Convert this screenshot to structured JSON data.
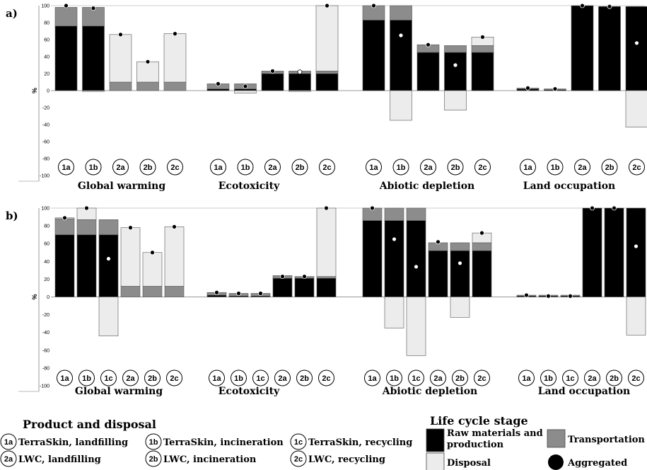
{
  "chart_data": [
    {
      "panel_label": "a)",
      "type": "bar",
      "stacked": true,
      "ylabel": "%",
      "ylim": [
        -100,
        100
      ],
      "yticks": [
        -100,
        -80,
        -60,
        -40,
        -20,
        0,
        20,
        40,
        60,
        80,
        100
      ],
      "groups": [
        {
          "name": "Global warming",
          "bars": [
            {
              "code": "1a",
              "raw": 76,
              "transport": 22,
              "disposal": 0,
              "aggregated": 100,
              "agg_style": "filled"
            },
            {
              "code": "1b",
              "raw": 76,
              "transport": 22,
              "disposal": -1,
              "aggregated": 97,
              "agg_style": "filled"
            },
            {
              "code": "2a",
              "raw": 0,
              "transport": 10,
              "disposal": 56,
              "aggregated": 66,
              "agg_style": "filled"
            },
            {
              "code": "2b",
              "raw": 0,
              "transport": 10,
              "disposal": 24,
              "aggregated": 34,
              "agg_style": "filled"
            },
            {
              "code": "2c",
              "raw": 0,
              "transport": 10,
              "disposal": 57,
              "aggregated": 67,
              "agg_style": "filled"
            }
          ]
        },
        {
          "name": "Ecotoxicity",
          "bars": [
            {
              "code": "1a",
              "raw": 2,
              "transport": 6,
              "disposal": 0,
              "aggregated": 8,
              "agg_style": "filled"
            },
            {
              "code": "1b",
              "raw": 2,
              "transport": 6,
              "disposal": -3,
              "aggregated": 5,
              "agg_style": "filled"
            },
            {
              "code": "2a",
              "raw": 20,
              "transport": 3,
              "disposal": 0,
              "aggregated": 23,
              "agg_style": "filled"
            },
            {
              "code": "2b",
              "raw": 20,
              "transport": 3,
              "disposal": -1,
              "aggregated": 22,
              "agg_style": "hollow"
            },
            {
              "code": "2c",
              "raw": 20,
              "transport": 3,
              "disposal": 77,
              "aggregated": 100,
              "agg_style": "filled"
            }
          ]
        },
        {
          "name": "Abiotic depletion",
          "bars": [
            {
              "code": "1a",
              "raw": 83,
              "transport": 17,
              "disposal": 0,
              "aggregated": 100,
              "agg_style": "filled"
            },
            {
              "code": "1b",
              "raw": 83,
              "transport": 17,
              "disposal": -35,
              "aggregated": 65,
              "agg_style": "hollow"
            },
            {
              "code": "2a",
              "raw": 45,
              "transport": 9,
              "disposal": 0,
              "aggregated": 54,
              "agg_style": "filled"
            },
            {
              "code": "2b",
              "raw": 45,
              "transport": 8,
              "disposal": -23,
              "aggregated": 30,
              "agg_style": "hollow"
            },
            {
              "code": "2c",
              "raw": 45,
              "transport": 8,
              "disposal": 10,
              "aggregated": 63,
              "agg_style": "filled"
            }
          ]
        },
        {
          "name": "Land occupation",
          "bars": [
            {
              "code": "1a",
              "raw": 2,
              "transport": 1,
              "disposal": 0,
              "aggregated": 3,
              "agg_style": "filled"
            },
            {
              "code": "1b",
              "raw": 1,
              "transport": 1,
              "disposal": 0,
              "aggregated": 2,
              "agg_style": "filled"
            },
            {
              "code": "2a",
              "raw": 100,
              "transport": 0,
              "disposal": 0,
              "aggregated": 100,
              "agg_style": "filled"
            },
            {
              "code": "2b",
              "raw": 99,
              "transport": 0,
              "disposal": 0,
              "aggregated": 99,
              "agg_style": "filled"
            },
            {
              "code": "2c",
              "raw": 99,
              "transport": 0,
              "disposal": -43,
              "aggregated": 56,
              "agg_style": "hollow"
            }
          ]
        }
      ]
    },
    {
      "panel_label": "b)",
      "type": "bar",
      "stacked": true,
      "ylabel": "%",
      "ylim": [
        -100,
        100
      ],
      "yticks": [
        -100,
        -80,
        -60,
        -40,
        -20,
        0,
        20,
        40,
        60,
        80,
        100
      ],
      "groups": [
        {
          "name": "Global warming",
          "bars": [
            {
              "code": "1a",
              "raw": 70,
              "transport": 18,
              "disposal": 1,
              "aggregated": 89,
              "agg_style": "filled"
            },
            {
              "code": "1b",
              "raw": 70,
              "transport": 17,
              "disposal": 13,
              "aggregated": 100,
              "agg_style": "filled"
            },
            {
              "code": "1c",
              "raw": 70,
              "transport": 17,
              "disposal": -44,
              "aggregated": 43,
              "agg_style": "hollow"
            },
            {
              "code": "2a",
              "raw": 0,
              "transport": 12,
              "disposal": 66,
              "aggregated": 78,
              "agg_style": "filled"
            },
            {
              "code": "2b",
              "raw": 0,
              "transport": 12,
              "disposal": 38,
              "aggregated": 50,
              "agg_style": "filled"
            },
            {
              "code": "2c",
              "raw": 0,
              "transport": 12,
              "disposal": 67,
              "aggregated": 79,
              "agg_style": "filled"
            }
          ]
        },
        {
          "name": "Ecotoxicity",
          "bars": [
            {
              "code": "1a",
              "raw": 2,
              "transport": 3,
              "disposal": 0,
              "aggregated": 5,
              "agg_style": "filled"
            },
            {
              "code": "1b",
              "raw": 1,
              "transport": 3,
              "disposal": 0,
              "aggregated": 4,
              "agg_style": "filled"
            },
            {
              "code": "1c",
              "raw": 1,
              "transport": 3,
              "disposal": 0,
              "aggregated": 4,
              "agg_style": "filled"
            },
            {
              "code": "2a",
              "raw": 21,
              "transport": 3,
              "disposal": 0,
              "aggregated": 23,
              "agg_style": "filled"
            },
            {
              "code": "2b",
              "raw": 21,
              "transport": 2,
              "disposal": 0,
              "aggregated": 23,
              "agg_style": "filled"
            },
            {
              "code": "2c",
              "raw": 21,
              "transport": 2,
              "disposal": 77,
              "aggregated": 100,
              "agg_style": "filled"
            }
          ]
        },
        {
          "name": "Abiotic depletion",
          "bars": [
            {
              "code": "1a",
              "raw": 86,
              "transport": 14,
              "disposal": 0,
              "aggregated": 100,
              "agg_style": "filled"
            },
            {
              "code": "1b",
              "raw": 86,
              "transport": 14,
              "disposal": -35,
              "aggregated": 65,
              "agg_style": "hollow"
            },
            {
              "code": "1c",
              "raw": 86,
              "transport": 14,
              "disposal": -66,
              "aggregated": 34,
              "agg_style": "hollow"
            },
            {
              "code": "2a",
              "raw": 52,
              "transport": 9,
              "disposal": 0,
              "aggregated": 62,
              "agg_style": "filled"
            },
            {
              "code": "2b",
              "raw": 52,
              "transport": 9,
              "disposal": -23,
              "aggregated": 38,
              "agg_style": "hollow"
            },
            {
              "code": "2c",
              "raw": 52,
              "transport": 9,
              "disposal": 11,
              "aggregated": 72,
              "agg_style": "filled"
            }
          ]
        },
        {
          "name": "Land occupation",
          "bars": [
            {
              "code": "1a",
              "raw": 1,
              "transport": 1,
              "disposal": 0,
              "aggregated": 2,
              "agg_style": "filled"
            },
            {
              "code": "1b",
              "raw": 1,
              "transport": 1,
              "disposal": 0,
              "aggregated": 1,
              "agg_style": "filled"
            },
            {
              "code": "1c",
              "raw": 1,
              "transport": 1,
              "disposal": 0,
              "aggregated": 1,
              "agg_style": "filled"
            },
            {
              "code": "2a",
              "raw": 100,
              "transport": 0,
              "disposal": 0,
              "aggregated": 100,
              "agg_style": "filled"
            },
            {
              "code": "2b",
              "raw": 100,
              "transport": 0,
              "disposal": 0,
              "aggregated": 100,
              "agg_style": "filled"
            },
            {
              "code": "2c",
              "raw": 100,
              "transport": 0,
              "disposal": -43,
              "aggregated": 57,
              "agg_style": "hollow"
            }
          ]
        }
      ]
    }
  ],
  "legend_product": {
    "title": "Product and disposal",
    "items": [
      {
        "code": "1a",
        "label": "TerraSkin, landfilling"
      },
      {
        "code": "1b",
        "label": "TerraSkin, incineration"
      },
      {
        "code": "1c",
        "label": "TerraSkin, recycling"
      },
      {
        "code": "2a",
        "label": "LWC, landfilling"
      },
      {
        "code": "2b",
        "label": "LWC, incineration"
      },
      {
        "code": "2c",
        "label": "LWC, recycling"
      }
    ]
  },
  "legend_stage": {
    "title": "Life cycle stage",
    "items": [
      {
        "key": "raw",
        "label_lines": [
          "Raw materials and",
          "production"
        ],
        "color": "#000000"
      },
      {
        "key": "transport",
        "label_lines": [
          "Transportation"
        ],
        "color": "#8c8c8c"
      },
      {
        "key": "disposal",
        "label_lines": [
          "Disposal"
        ],
        "color": "#ececec"
      },
      {
        "key": "aggregated",
        "label_lines": [
          "Aggregated"
        ],
        "color": "#000000"
      }
    ]
  }
}
